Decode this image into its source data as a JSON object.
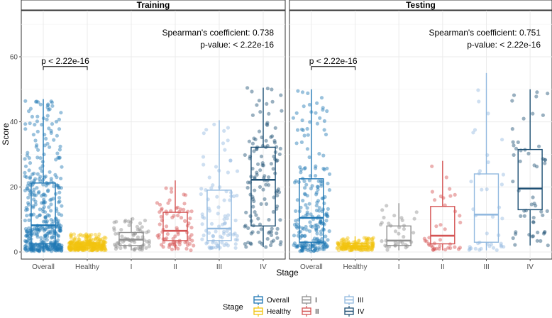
{
  "chart_data": {
    "type": "box-jitter",
    "ylabel": "Score",
    "xlabel": "Stage",
    "ylim": [
      0,
      72
    ],
    "y_ticks": [
      0,
      20,
      40,
      60
    ],
    "categories": [
      "Overall",
      "Healthy",
      "I",
      "II",
      "III",
      "IV"
    ],
    "colors": {
      "Overall": "#1f77b4",
      "Healthy": "#f2c40f",
      "I": "#8f8f8f",
      "II": "#d45353",
      "III": "#92b9df",
      "IV": "#1d4f73"
    },
    "legend": {
      "title": "Stage",
      "position": "bottom",
      "items": [
        "Overall",
        "I",
        "III",
        "Healthy",
        "II",
        "IV"
      ]
    },
    "panels": [
      {
        "title": "Training",
        "spearman": "Spearman's coefficient: 0.738",
        "pvalue": "p-value: < 2.22e-16",
        "bracket": {
          "from": "Overall",
          "to": "Healthy",
          "y": 57,
          "label": "p < 2.22e-16"
        },
        "boxes": [
          {
            "category": "Overall",
            "min": 0.2,
            "q1": 2.5,
            "median": 8.2,
            "q3": 21.2,
            "max": 47.0,
            "n": 420
          },
          {
            "category": "Healthy",
            "min": 0.5,
            "q1": 1.2,
            "median": 2.0,
            "q3": 2.8,
            "max": 5.5,
            "n": 300
          },
          {
            "category": "I",
            "min": 0.5,
            "q1": 2.0,
            "median": 3.8,
            "q3": 6.0,
            "max": 10.5,
            "n": 70
          },
          {
            "category": "II",
            "min": 0.5,
            "q1": 3.5,
            "median": 6.5,
            "q3": 12.2,
            "max": 22.0,
            "n": 80
          },
          {
            "category": "III",
            "min": 0.5,
            "q1": 3.5,
            "median": 7.2,
            "q3": 19.0,
            "max": 40.5,
            "n": 90
          },
          {
            "category": "IV",
            "min": 1.5,
            "q1": 8.0,
            "median": 22.2,
            "q3": 32.2,
            "max": 50.5,
            "n": 130
          }
        ]
      },
      {
        "title": "Testing",
        "spearman": "Spearman's coefficient: 0.751",
        "pvalue": "p-value: < 2.22e-16",
        "bracket": {
          "from": "Overall",
          "to": "Healthy",
          "y": 57,
          "label": "p < 2.22e-16"
        },
        "boxes": [
          {
            "category": "Overall",
            "min": 0.2,
            "q1": 3.0,
            "median": 10.5,
            "q3": 22.5,
            "max": 50.0,
            "n": 230
          },
          {
            "category": "Healthy",
            "min": 0.5,
            "q1": 1.2,
            "median": 1.8,
            "q3": 2.6,
            "max": 4.8,
            "n": 160
          },
          {
            "category": "I",
            "min": 0.5,
            "q1": 2.0,
            "median": 3.5,
            "q3": 8.0,
            "max": 15.0,
            "n": 35
          },
          {
            "category": "II",
            "min": 0.5,
            "q1": 2.5,
            "median": 5.0,
            "q3": 14.0,
            "max": 28.0,
            "n": 40
          },
          {
            "category": "III",
            "min": 0.5,
            "q1": 3.0,
            "median": 11.5,
            "q3": 24.0,
            "max": 55.0,
            "n": 40
          },
          {
            "category": "IV",
            "min": 2.0,
            "q1": 13.0,
            "median": 19.5,
            "q3": 31.5,
            "max": 50.0,
            "n": 55
          }
        ]
      }
    ]
  }
}
